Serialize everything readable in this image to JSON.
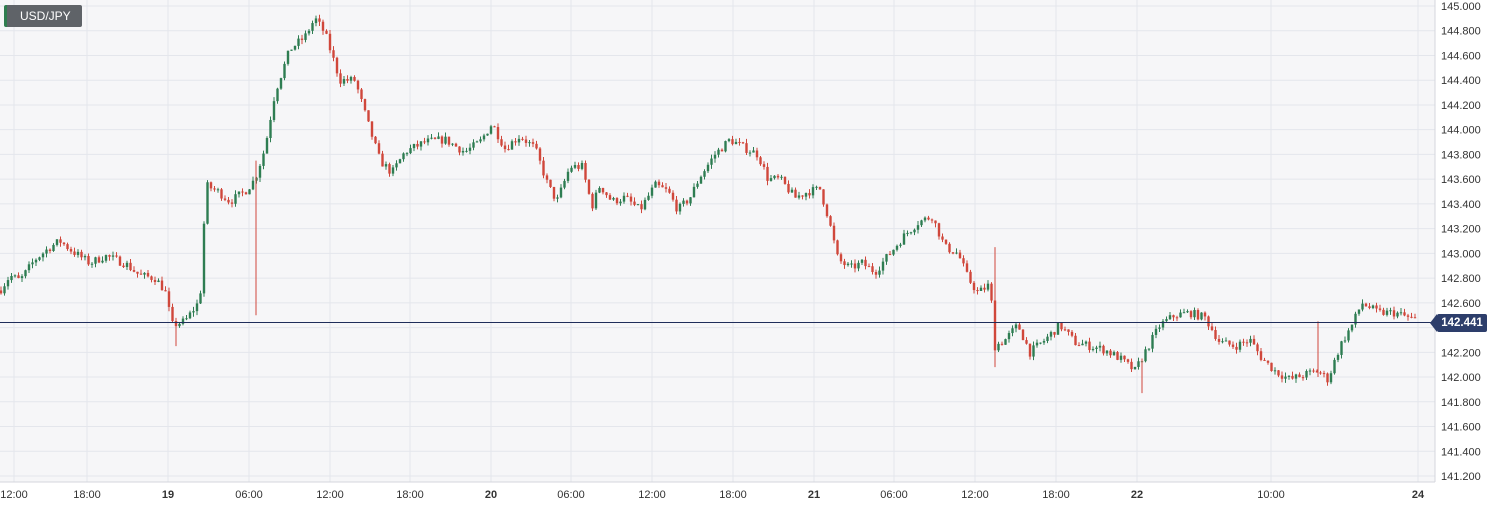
{
  "symbol": "USD/JPY",
  "current_price_label": "142.441",
  "colors": {
    "up": "#2e7d52",
    "down": "#d0473b",
    "grid": "#e4e6ec",
    "price_line": "#1f2d5a",
    "plot_bg": "#f6f6f8"
  },
  "chart_data": {
    "type": "candlestick",
    "title": "USD/JPY",
    "y_ticks": [
      "145.000",
      "144.800",
      "144.600",
      "144.400",
      "144.200",
      "144.000",
      "143.800",
      "143.600",
      "143.400",
      "143.200",
      "143.000",
      "142.800",
      "142.600",
      "142.400",
      "142.200",
      "142.000",
      "141.800",
      "141.600",
      "141.400",
      "141.200"
    ],
    "ylim": [
      141.2,
      145.0
    ],
    "x_ticks": [
      {
        "label": "12:00",
        "bold": false
      },
      {
        "label": "18:00",
        "bold": false
      },
      {
        "label": "19",
        "bold": true
      },
      {
        "label": "06:00",
        "bold": false
      },
      {
        "label": "12:00",
        "bold": false
      },
      {
        "label": "18:00",
        "bold": false
      },
      {
        "label": "20",
        "bold": true
      },
      {
        "label": "06:00",
        "bold": false
      },
      {
        "label": "12:00",
        "bold": false
      },
      {
        "label": "18:00",
        "bold": false
      },
      {
        "label": "21",
        "bold": true
      },
      {
        "label": "06:00",
        "bold": false
      },
      {
        "label": "12:00",
        "bold": false
      },
      {
        "label": "18:00",
        "bold": false
      },
      {
        "label": "22",
        "bold": true
      },
      {
        "label": "10:00",
        "bold": false
      },
      {
        "label": "24",
        "bold": true
      }
    ],
    "current_price": 142.441,
    "price_path": [
      {
        "x": 0,
        "y": 142.7
      },
      {
        "x": 10,
        "y": 142.82
      },
      {
        "x": 20,
        "y": 142.78
      },
      {
        "x": 35,
        "y": 142.95
      },
      {
        "x": 50,
        "y": 143.05
      },
      {
        "x": 60,
        "y": 143.1
      },
      {
        "x": 72,
        "y": 143.02
      },
      {
        "x": 90,
        "y": 142.92
      },
      {
        "x": 105,
        "y": 142.98
      },
      {
        "x": 125,
        "y": 142.92
      },
      {
        "x": 140,
        "y": 142.82
      },
      {
        "x": 155,
        "y": 142.8
      },
      {
        "x": 165,
        "y": 142.7
      },
      {
        "x": 172,
        "y": 142.42
      },
      {
        "x": 185,
        "y": 142.45
      },
      {
        "x": 200,
        "y": 142.62
      },
      {
        "x": 206,
        "y": 143.55
      },
      {
        "x": 218,
        "y": 143.5
      },
      {
        "x": 230,
        "y": 143.42
      },
      {
        "x": 245,
        "y": 143.5
      },
      {
        "x": 255,
        "y": 143.6
      },
      {
        "x": 265,
        "y": 143.85
      },
      {
        "x": 275,
        "y": 144.3
      },
      {
        "x": 290,
        "y": 144.65
      },
      {
        "x": 305,
        "y": 144.75
      },
      {
        "x": 315,
        "y": 144.9
      },
      {
        "x": 325,
        "y": 144.78
      },
      {
        "x": 340,
        "y": 144.4
      },
      {
        "x": 355,
        "y": 144.4
      },
      {
        "x": 368,
        "y": 144.05
      },
      {
        "x": 380,
        "y": 143.75
      },
      {
        "x": 392,
        "y": 143.65
      },
      {
        "x": 405,
        "y": 143.82
      },
      {
        "x": 425,
        "y": 143.9
      },
      {
        "x": 445,
        "y": 143.92
      },
      {
        "x": 465,
        "y": 143.82
      },
      {
        "x": 480,
        "y": 143.9
      },
      {
        "x": 492,
        "y": 144.05
      },
      {
        "x": 505,
        "y": 143.85
      },
      {
        "x": 520,
        "y": 143.95
      },
      {
        "x": 535,
        "y": 143.85
      },
      {
        "x": 548,
        "y": 143.55
      },
      {
        "x": 557,
        "y": 143.42
      },
      {
        "x": 570,
        "y": 143.7
      },
      {
        "x": 582,
        "y": 143.7
      },
      {
        "x": 592,
        "y": 143.38
      },
      {
        "x": 600,
        "y": 143.55
      },
      {
        "x": 612,
        "y": 143.42
      },
      {
        "x": 625,
        "y": 143.45
      },
      {
        "x": 640,
        "y": 143.35
      },
      {
        "x": 655,
        "y": 143.55
      },
      {
        "x": 668,
        "y": 143.5
      },
      {
        "x": 678,
        "y": 143.35
      },
      {
        "x": 690,
        "y": 143.45
      },
      {
        "x": 700,
        "y": 143.62
      },
      {
        "x": 715,
        "y": 143.8
      },
      {
        "x": 730,
        "y": 143.92
      },
      {
        "x": 745,
        "y": 143.85
      },
      {
        "x": 758,
        "y": 143.8
      },
      {
        "x": 768,
        "y": 143.6
      },
      {
        "x": 780,
        "y": 143.6
      },
      {
        "x": 795,
        "y": 143.45
      },
      {
        "x": 808,
        "y": 143.5
      },
      {
        "x": 820,
        "y": 143.52
      },
      {
        "x": 828,
        "y": 143.3
      },
      {
        "x": 838,
        "y": 142.95
      },
      {
        "x": 850,
        "y": 142.88
      },
      {
        "x": 862,
        "y": 142.92
      },
      {
        "x": 875,
        "y": 142.85
      },
      {
        "x": 890,
        "y": 143.0
      },
      {
        "x": 905,
        "y": 143.15
      },
      {
        "x": 918,
        "y": 143.25
      },
      {
        "x": 932,
        "y": 143.3
      },
      {
        "x": 945,
        "y": 143.05
      },
      {
        "x": 958,
        "y": 143.0
      },
      {
        "x": 968,
        "y": 142.8
      },
      {
        "x": 978,
        "y": 142.68
      },
      {
        "x": 990,
        "y": 142.75
      },
      {
        "x": 995,
        "y": 142.25
      },
      {
        "x": 1005,
        "y": 142.3
      },
      {
        "x": 1018,
        "y": 142.42
      },
      {
        "x": 1030,
        "y": 142.2
      },
      {
        "x": 1045,
        "y": 142.3
      },
      {
        "x": 1060,
        "y": 142.42
      },
      {
        "x": 1075,
        "y": 142.28
      },
      {
        "x": 1090,
        "y": 142.25
      },
      {
        "x": 1105,
        "y": 142.22
      },
      {
        "x": 1120,
        "y": 142.15
      },
      {
        "x": 1135,
        "y": 142.05
      },
      {
        "x": 1145,
        "y": 142.2
      },
      {
        "x": 1160,
        "y": 142.42
      },
      {
        "x": 1175,
        "y": 142.5
      },
      {
        "x": 1190,
        "y": 142.52
      },
      {
        "x": 1205,
        "y": 142.48
      },
      {
        "x": 1220,
        "y": 142.28
      },
      {
        "x": 1235,
        "y": 142.25
      },
      {
        "x": 1250,
        "y": 142.3
      },
      {
        "x": 1262,
        "y": 142.15
      },
      {
        "x": 1275,
        "y": 142.05
      },
      {
        "x": 1290,
        "y": 141.98
      },
      {
        "x": 1305,
        "y": 142.02
      },
      {
        "x": 1318,
        "y": 142.05
      },
      {
        "x": 1328,
        "y": 141.98
      },
      {
        "x": 1340,
        "y": 142.25
      },
      {
        "x": 1352,
        "y": 142.42
      },
      {
        "x": 1362,
        "y": 142.6
      },
      {
        "x": 1378,
        "y": 142.52
      },
      {
        "x": 1395,
        "y": 142.52
      },
      {
        "x": 1415,
        "y": 142.46
      }
    ],
    "spikes": [
      {
        "x": 256,
        "low": 142.5,
        "high": 143.75
      },
      {
        "x": 995,
        "low": 142.08,
        "high": 143.05
      },
      {
        "x": 1318,
        "low": 142.0,
        "high": 142.45
      },
      {
        "x": 1142,
        "low": 141.87,
        "high": 142.15
      },
      {
        "x": 176,
        "low": 142.25,
        "high": 142.45
      }
    ]
  }
}
